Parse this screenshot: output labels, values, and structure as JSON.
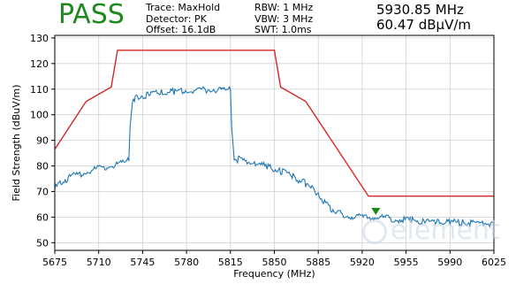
{
  "status": {
    "verdict": "PASS"
  },
  "settings": {
    "trace": "Trace: MaxHold",
    "detector": "Detector: PK",
    "offset": "Offset: 16.1dB",
    "rbw": "RBW: 1 MHz",
    "vbw": "VBW: 3 MHz",
    "swt": "SWT: 1.0ms"
  },
  "marker": {
    "frequency": "5930.85 MHz",
    "level": "60.47 dBµV/m",
    "x": 5930.85,
    "y": 60.47
  },
  "watermark": {
    "text": "element"
  },
  "colors": {
    "pass": "#1e8a1e",
    "limit": "#d62728",
    "trace": "#1f77b4",
    "marker": "#1a8a1a"
  },
  "chart_data": {
    "type": "line",
    "xlabel": "Frequency (MHz)",
    "ylabel": "Field Strength (dBuV/m)",
    "xlim": [
      5675,
      6025
    ],
    "ylim": [
      47,
      131
    ],
    "xticks": [
      5675,
      5710,
      5745,
      5780,
      5815,
      5850,
      5885,
      5920,
      5955,
      5990,
      6025
    ],
    "yticks": [
      50,
      60,
      70,
      80,
      90,
      100,
      110,
      120,
      130
    ],
    "grid": true,
    "series": [
      {
        "role": "limit",
        "x": [
          5675,
          5700,
          5720,
          5725,
          5850,
          5855,
          5875,
          5925,
          6025
        ],
        "y": [
          86.5,
          105.2,
          110.8,
          125.2,
          125.2,
          110.8,
          105.2,
          68.2,
          68.2
        ]
      },
      {
        "role": "trace",
        "x": [
          5675,
          5680,
          5690,
          5700,
          5710,
          5720,
          5730,
          5734,
          5735,
          5737,
          5740,
          5750,
          5760,
          5770,
          5780,
          5790,
          5800,
          5810,
          5815,
          5816,
          5818,
          5825,
          5835,
          5845,
          5855,
          5865,
          5875,
          5885,
          5890,
          5895,
          5900,
          5910,
          5920,
          5930,
          5940,
          5950,
          5960,
          5970,
          5980,
          5990,
          6000,
          6010,
          6025
        ],
        "y": [
          71,
          74,
          76,
          77.5,
          79,
          80,
          81,
          82,
          95,
          106,
          107,
          108,
          108.5,
          109,
          109.5,
          109.5,
          110,
          109.5,
          110,
          95,
          83,
          82,
          81,
          79.5,
          78,
          76,
          73,
          69,
          66,
          63.5,
          62,
          60.5,
          60,
          60.2,
          59.5,
          59,
          58.8,
          58.5,
          58.2,
          58,
          58,
          57.8,
          57.5
        ]
      }
    ]
  }
}
